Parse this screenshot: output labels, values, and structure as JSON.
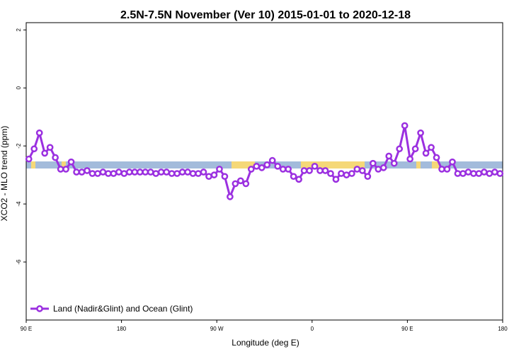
{
  "chart_data": {
    "type": "line",
    "title": "2.5N-7.5N November (Ver 10)   2015-01-01 to 2020-12-18",
    "x_label": "Longitude (deg E)",
    "y_label": "XCO2 - MLO trend (ppm)",
    "xlim": [
      90,
      540
    ],
    "ylim": [
      -8,
      2.25
    ],
    "xticks": [
      {
        "value": 90,
        "label": "90 E"
      },
      180,
      {
        "value": 270,
        "label": "90 W"
      },
      {
        "value": 360,
        "label": "0"
      },
      {
        "value": 450,
        "label": "90 E"
      },
      {
        "value": 540,
        "label": "180"
      }
    ],
    "yticks": [
      2,
      0,
      -2,
      -4,
      -6
    ],
    "legend": "bottom-left",
    "x": [
      92.5,
      97.5,
      102.5,
      107.5,
      112.5,
      117.5,
      122.5,
      127.5,
      132.5,
      137.5,
      142.5,
      147.5,
      152.5,
      157.5,
      162.5,
      167.5,
      172.5,
      177.5,
      182.5,
      187.5,
      192.5,
      197.5,
      202.5,
      207.5,
      212.5,
      217.5,
      222.5,
      227.5,
      232.5,
      237.5,
      242.5,
      247.5,
      252.5,
      257.5,
      262.5,
      267.5,
      272.5,
      277.5,
      282.5,
      287.5,
      292.5,
      297.5,
      302.5,
      307.5,
      312.5,
      317.5,
      322.5,
      327.5,
      332.5,
      337.5,
      342.5,
      347.5,
      352.5,
      357.5,
      362.5,
      367.5,
      372.5,
      377.5,
      382.5,
      387.5,
      392.5,
      397.5,
      402.5,
      407.5,
      412.5,
      417.5,
      422.5,
      427.5,
      432.5,
      437.5,
      442.5,
      447.5,
      452.5,
      457.5,
      462.5,
      467.5,
      472.5,
      477.5,
      482.5,
      487.5,
      492.5,
      497.5,
      502.5,
      507.5,
      512.5,
      517.5,
      522.5,
      527.5,
      532.5,
      537.5
    ],
    "series": [
      {
        "name": "Land (Nadir&Glint) and Ocean (Glint)",
        "color": "#9b30e0",
        "values": [
          -2.45,
          -2.1,
          -1.55,
          -2.25,
          -2.05,
          -2.4,
          -2.8,
          -2.8,
          -2.55,
          -2.9,
          -2.9,
          -2.85,
          -2.95,
          -2.95,
          -2.9,
          -2.95,
          -2.95,
          -2.9,
          -2.95,
          -2.9,
          -2.9,
          -2.9,
          -2.9,
          -2.9,
          -2.95,
          -2.9,
          -2.9,
          -2.95,
          -2.95,
          -2.9,
          -2.9,
          -2.95,
          -2.95,
          -2.9,
          -3.05,
          -3.0,
          -2.8,
          -3.05,
          -3.75,
          -3.3,
          -3.2,
          -3.3,
          -2.8,
          -2.7,
          -2.75,
          -2.65,
          -2.5,
          -2.7,
          -2.8,
          -2.8,
          -3.05,
          -3.15,
          -2.85,
          -2.85,
          -2.7,
          -2.85,
          -2.85,
          -2.95,
          -3.15,
          -2.95,
          -3.0,
          -2.95,
          -2.8,
          -2.85,
          -3.05,
          -2.6,
          -2.8,
          -2.75,
          -2.35,
          -2.6,
          -2.1,
          -1.3,
          -2.45,
          -2.1,
          -1.55,
          -2.25,
          -2.05,
          -2.4,
          -2.8,
          -2.8,
          -2.55,
          -2.95,
          -2.95,
          -2.9,
          -2.95,
          -2.95,
          -2.9,
          -2.95,
          -2.9,
          -2.95
        ]
      }
    ]
  }
}
